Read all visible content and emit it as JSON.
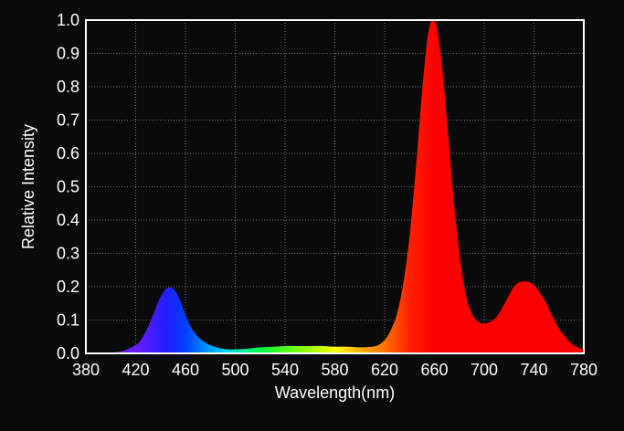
{
  "chart_data": {
    "type": "area",
    "title": "",
    "xlabel": "Wavelength(nm)",
    "ylabel": "Relative Intensity",
    "xlim": [
      380,
      780
    ],
    "ylim": [
      0,
      1.0
    ],
    "grid": true,
    "x_ticks": [
      "380",
      "420",
      "460",
      "500",
      "540",
      "580",
      "620",
      "660",
      "700",
      "740",
      "780"
    ],
    "y_ticks": [
      "0.0",
      "0.1",
      "0.2",
      "0.3",
      "0.4",
      "0.5",
      "0.6",
      "0.7",
      "0.8",
      "0.9",
      "1.0"
    ],
    "colors": {
      "background": "#0a0a0a",
      "frame": "#ffffff",
      "grid": "#6a6a6a"
    },
    "spectrum_gradient": [
      {
        "wavelength": 380,
        "color": "#5a2a8a"
      },
      {
        "wavelength": 420,
        "color": "#6a1aff"
      },
      {
        "wavelength": 445,
        "color": "#1f1fff"
      },
      {
        "wavelength": 460,
        "color": "#0040ff"
      },
      {
        "wavelength": 480,
        "color": "#00a0ff"
      },
      {
        "wavelength": 495,
        "color": "#00e0e0"
      },
      {
        "wavelength": 520,
        "color": "#00ff40"
      },
      {
        "wavelength": 560,
        "color": "#a0ff00"
      },
      {
        "wavelength": 580,
        "color": "#ffff00"
      },
      {
        "wavelength": 600,
        "color": "#ffb000"
      },
      {
        "wavelength": 620,
        "color": "#ff7000"
      },
      {
        "wavelength": 640,
        "color": "#ff2000"
      },
      {
        "wavelength": 660,
        "color": "#ff0000"
      },
      {
        "wavelength": 780,
        "color": "#ff0000"
      }
    ],
    "series": [
      {
        "x": [
          380,
          390,
          400,
          410,
          420,
          425,
          430,
          435,
          440,
          445,
          450,
          455,
          460,
          465,
          470,
          475,
          480,
          485,
          490,
          495,
          500,
          510,
          520,
          530,
          540,
          550,
          560,
          570,
          580,
          590,
          600,
          610,
          615,
          620,
          625,
          630,
          635,
          640,
          645,
          650,
          655,
          660,
          665,
          670,
          675,
          680,
          685,
          690,
          695,
          700,
          705,
          710,
          715,
          720,
          725,
          730,
          735,
          740,
          745,
          750,
          755,
          760,
          765,
          770,
          775,
          780
        ],
        "y": [
          0.0,
          0.0,
          0.002,
          0.008,
          0.025,
          0.045,
          0.08,
          0.125,
          0.17,
          0.195,
          0.195,
          0.165,
          0.115,
          0.075,
          0.05,
          0.035,
          0.025,
          0.018,
          0.014,
          0.012,
          0.012,
          0.014,
          0.018,
          0.02,
          0.022,
          0.022,
          0.022,
          0.022,
          0.02,
          0.02,
          0.018,
          0.02,
          0.025,
          0.04,
          0.07,
          0.12,
          0.21,
          0.35,
          0.55,
          0.78,
          0.96,
          1.0,
          0.9,
          0.7,
          0.48,
          0.3,
          0.18,
          0.12,
          0.095,
          0.09,
          0.095,
          0.11,
          0.14,
          0.175,
          0.205,
          0.215,
          0.215,
          0.205,
          0.18,
          0.15,
          0.11,
          0.075,
          0.05,
          0.03,
          0.018,
          0.012
        ]
      }
    ]
  }
}
